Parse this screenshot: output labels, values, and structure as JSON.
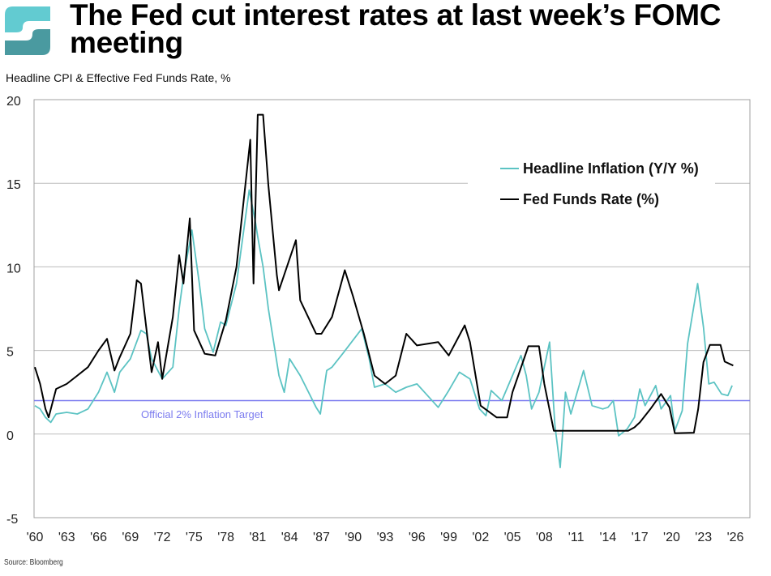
{
  "header": {
    "title": "The Fed cut interest rates at last week’s FOMC meeting",
    "subtitle": "Headline CPI & Effective Fed Funds Rate, %",
    "source": "Source: Bloomberg",
    "logo_colors": [
      "#62cbd1",
      "#4a9aa0"
    ]
  },
  "chart_data": {
    "type": "line",
    "title": "The Fed cut interest rates at last week’s FOMC meeting",
    "ylabel": "Headline CPI & Effective Fed Funds Rate, %",
    "xlim": [
      1960,
      2026
    ],
    "ylim": [
      -5,
      20
    ],
    "yticks": [
      "20",
      "15",
      "10",
      "5",
      "0",
      "-5"
    ],
    "yticks_values": [
      20,
      15,
      10,
      5,
      0,
      -5
    ],
    "xticks": [
      "'60",
      "'63",
      "'66",
      "'69",
      "'72",
      "'75",
      "'78",
      "'81",
      "'84",
      "'87",
      "'90",
      "'93",
      "'96",
      "'99",
      "'02",
      "'05",
      "'08",
      "'11",
      "'14",
      "'17",
      "'20",
      "'23",
      "'26"
    ],
    "grid": true,
    "legend_position": "top-right",
    "reference_line": {
      "value": 2,
      "label": "Official 2% Inflation Target",
      "color": "#7b7bef"
    },
    "series": [
      {
        "name": "Headline Inflation (Y/Y %)",
        "color": "#5cc3c3",
        "points": [
          [
            1960,
            1.7
          ],
          [
            1960.5,
            1.5
          ],
          [
            1961,
            1.0
          ],
          [
            1961.5,
            0.7
          ],
          [
            1962,
            1.2
          ],
          [
            1963,
            1.3
          ],
          [
            1964,
            1.2
          ],
          [
            1965,
            1.5
          ],
          [
            1966,
            2.5
          ],
          [
            1966.8,
            3.7
          ],
          [
            1967.5,
            2.5
          ],
          [
            1968,
            3.7
          ],
          [
            1969,
            4.5
          ],
          [
            1970,
            6.2
          ],
          [
            1970.5,
            6.0
          ],
          [
            1971,
            4.5
          ],
          [
            1972,
            3.3
          ],
          [
            1973,
            4.0
          ],
          [
            1973.6,
            7.5
          ],
          [
            1974,
            9.4
          ],
          [
            1974.8,
            12.2
          ],
          [
            1975.5,
            9.0
          ],
          [
            1976,
            6.3
          ],
          [
            1976.8,
            4.9
          ],
          [
            1977.5,
            6.7
          ],
          [
            1978,
            6.5
          ],
          [
            1979,
            9.0
          ],
          [
            1980.2,
            14.6
          ],
          [
            1980.8,
            12.6
          ],
          [
            1981,
            11.8
          ],
          [
            1981.5,
            10.0
          ],
          [
            1982,
            7.5
          ],
          [
            1983,
            3.5
          ],
          [
            1983.5,
            2.5
          ],
          [
            1984,
            4.5
          ],
          [
            1985,
            3.5
          ],
          [
            1986.5,
            1.6
          ],
          [
            1986.9,
            1.2
          ],
          [
            1987.5,
            3.8
          ],
          [
            1988,
            4.0
          ],
          [
            1989,
            4.8
          ],
          [
            1990.8,
            6.3
          ],
          [
            1991.5,
            4.5
          ],
          [
            1992,
            2.8
          ],
          [
            1993,
            3.0
          ],
          [
            1994,
            2.5
          ],
          [
            1995,
            2.8
          ],
          [
            1996,
            3.0
          ],
          [
            1997,
            2.3
          ],
          [
            1998,
            1.6
          ],
          [
            1999,
            2.6
          ],
          [
            2000,
            3.7
          ],
          [
            2001,
            3.3
          ],
          [
            2001.9,
            1.5
          ],
          [
            2002.5,
            1.1
          ],
          [
            2003,
            2.6
          ],
          [
            2004,
            2.0
          ],
          [
            2005,
            3.5
          ],
          [
            2005.8,
            4.7
          ],
          [
            2006.3,
            3.5
          ],
          [
            2006.8,
            1.5
          ],
          [
            2007.5,
            2.5
          ],
          [
            2008.5,
            5.5
          ],
          [
            2009,
            0.5
          ],
          [
            2009.5,
            -2.0
          ],
          [
            2010,
            2.5
          ],
          [
            2010.5,
            1.2
          ],
          [
            2011.7,
            3.8
          ],
          [
            2012.5,
            1.7
          ],
          [
            2013.5,
            1.5
          ],
          [
            2014,
            1.6
          ],
          [
            2014.5,
            2.0
          ],
          [
            2015,
            -0.1
          ],
          [
            2015.8,
            0.3
          ],
          [
            2016.5,
            1.0
          ],
          [
            2017,
            2.7
          ],
          [
            2017.5,
            1.7
          ],
          [
            2018.5,
            2.9
          ],
          [
            2019,
            1.5
          ],
          [
            2019.9,
            2.3
          ],
          [
            2020.3,
            0.2
          ],
          [
            2021,
            1.4
          ],
          [
            2021.5,
            5.4
          ],
          [
            2022.45,
            9.0
          ],
          [
            2023,
            6.4
          ],
          [
            2023.5,
            3.0
          ],
          [
            2024,
            3.1
          ],
          [
            2024.7,
            2.4
          ],
          [
            2025.3,
            2.3
          ],
          [
            2025.7,
            2.9
          ]
        ]
      },
      {
        "name": "Fed Funds Rate (%)",
        "color": "#000000",
        "points": [
          [
            1960,
            4.0
          ],
          [
            1960.5,
            3.0
          ],
          [
            1961,
            1.5
          ],
          [
            1961.3,
            1.0
          ],
          [
            1962,
            2.7
          ],
          [
            1963,
            3.0
          ],
          [
            1964,
            3.5
          ],
          [
            1965,
            4.0
          ],
          [
            1966,
            5.0
          ],
          [
            1966.8,
            5.7
          ],
          [
            1967.5,
            3.8
          ],
          [
            1968,
            4.6
          ],
          [
            1969,
            6.0
          ],
          [
            1969.6,
            9.2
          ],
          [
            1970,
            9.0
          ],
          [
            1971,
            3.7
          ],
          [
            1971.6,
            5.5
          ],
          [
            1972,
            3.3
          ],
          [
            1973,
            7.0
          ],
          [
            1973.6,
            10.7
          ],
          [
            1974,
            9.0
          ],
          [
            1974.6,
            12.9
          ],
          [
            1975,
            6.2
          ],
          [
            1976,
            4.8
          ],
          [
            1977,
            4.7
          ],
          [
            1978,
            6.8
          ],
          [
            1979,
            10.0
          ],
          [
            1980.3,
            17.6
          ],
          [
            1980.6,
            9.0
          ],
          [
            1981,
            19.1
          ],
          [
            1981.5,
            19.1
          ],
          [
            1982,
            14.9
          ],
          [
            1982.8,
            9.5
          ],
          [
            1983,
            8.6
          ],
          [
            1984.6,
            11.6
          ],
          [
            1985,
            8.0
          ],
          [
            1986.5,
            6.0
          ],
          [
            1987,
            6.0
          ],
          [
            1988,
            7.0
          ],
          [
            1989.2,
            9.8
          ],
          [
            1990,
            8.2
          ],
          [
            1991,
            6.0
          ],
          [
            1992,
            3.5
          ],
          [
            1993,
            3.0
          ],
          [
            1994,
            3.5
          ],
          [
            1995,
            6.0
          ],
          [
            1996,
            5.3
          ],
          [
            1998,
            5.5
          ],
          [
            1999,
            4.7
          ],
          [
            2000.5,
            6.5
          ],
          [
            2001,
            5.5
          ],
          [
            2002,
            1.7
          ],
          [
            2003.5,
            1.0
          ],
          [
            2004.5,
            1.0
          ],
          [
            2005,
            2.5
          ],
          [
            2006.5,
            5.25
          ],
          [
            2007.5,
            5.25
          ],
          [
            2008,
            3.0
          ],
          [
            2008.9,
            0.2
          ],
          [
            2015.9,
            0.2
          ],
          [
            2016.5,
            0.4
          ],
          [
            2017,
            0.7
          ],
          [
            2018,
            1.5
          ],
          [
            2019,
            2.4
          ],
          [
            2019.8,
            1.6
          ],
          [
            2020.3,
            0.05
          ],
          [
            2022.1,
            0.08
          ],
          [
            2022.5,
            1.5
          ],
          [
            2023,
            4.3
          ],
          [
            2023.6,
            5.33
          ],
          [
            2024.6,
            5.33
          ],
          [
            2025,
            4.33
          ],
          [
            2025.8,
            4.1
          ]
        ]
      }
    ]
  }
}
